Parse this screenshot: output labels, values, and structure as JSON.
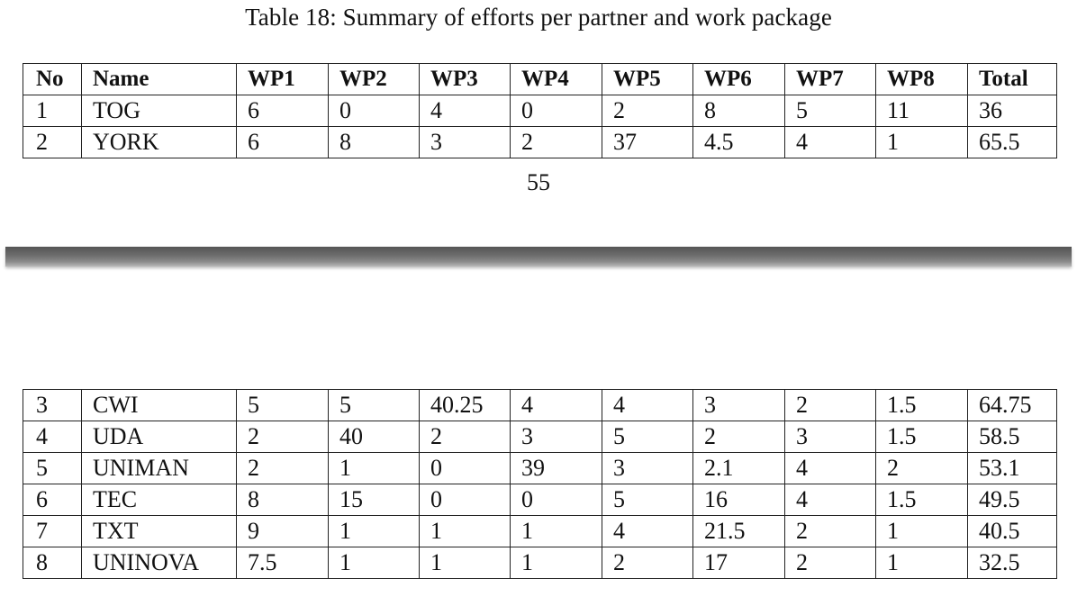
{
  "caption": "Table 18: Summary of efforts per partner and work package",
  "columns": [
    "No",
    "Name",
    "WP1",
    "WP2",
    "WP3",
    "WP4",
    "WP5",
    "WP6",
    "WP7",
    "WP8",
    "Total"
  ],
  "page1_rows": [
    [
      "1",
      "TOG",
      "6",
      "0",
      "4",
      "0",
      "2",
      "8",
      "5",
      "11",
      "36"
    ],
    [
      "2",
      "YORK",
      "6",
      "8",
      "3",
      "2",
      "37",
      "4.5",
      "4",
      "1",
      "65.5"
    ]
  ],
  "page_number": "55",
  "page2_rows": [
    [
      "3",
      "CWI",
      "5",
      "5",
      "40.25",
      "4",
      "4",
      "3",
      "2",
      "1.5",
      "64.75"
    ],
    [
      "4",
      "UDA",
      "2",
      "40",
      "2",
      "3",
      "5",
      "2",
      "3",
      "1.5",
      "58.5"
    ],
    [
      "5",
      "UNIMAN",
      "2",
      "1",
      "0",
      "39",
      "3",
      "2.1",
      "4",
      "2",
      "53.1"
    ],
    [
      "6",
      "TEC",
      "8",
      "15",
      "0",
      "0",
      "5",
      "16",
      "4",
      "1.5",
      "49.5"
    ],
    [
      "7",
      "TXT",
      "9",
      "1",
      "1",
      "1",
      "4",
      "21.5",
      "2",
      "1",
      "40.5"
    ],
    [
      "8",
      "UNINOVA",
      "7.5",
      "1",
      "1",
      "1",
      "2",
      "17",
      "2",
      "1",
      "32.5"
    ]
  ]
}
